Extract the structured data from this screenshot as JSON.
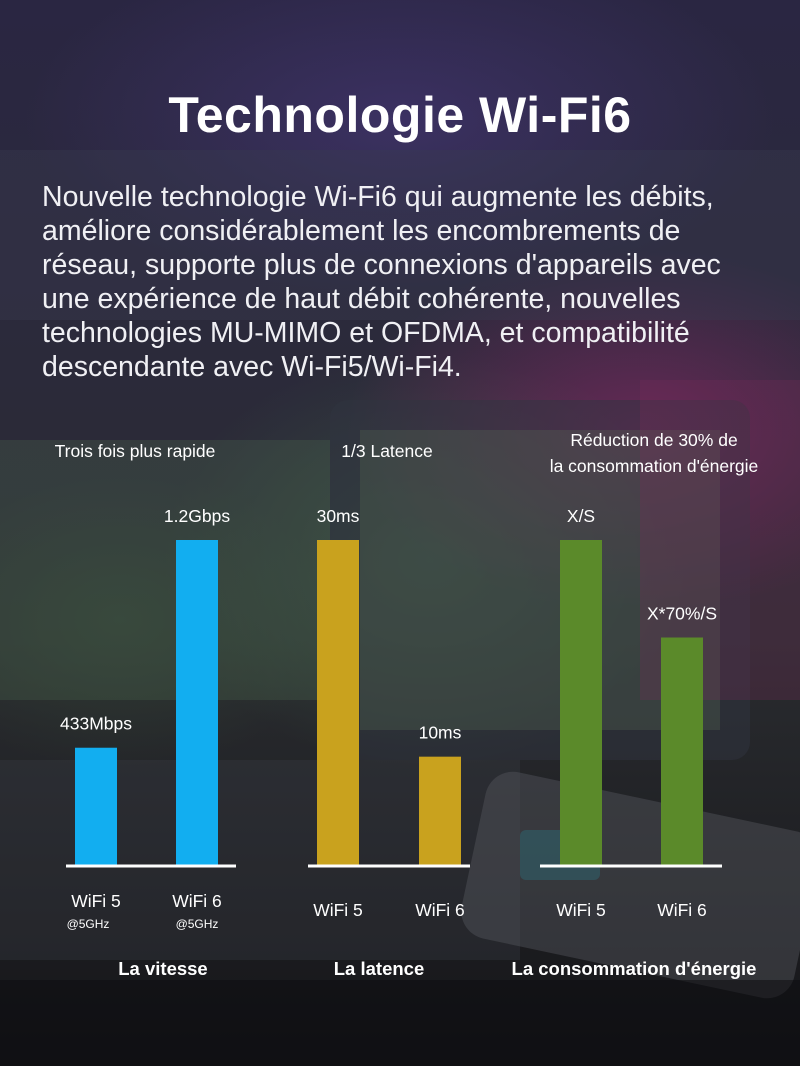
{
  "title": "Technologie Wi-Fi6",
  "description": "Nouvelle technologie Wi-Fi6 qui augmente les débits, améliore considérablement les encombrements de réseau, supporte plus de connexions d'appareils avec une expérience de haut débit cohérente, nouvelles technologies MU-MIMO et OFDMA, et compatibilité descendante avec Wi-Fi5/Wi-Fi4.",
  "colors": {
    "speed": "#12aef0",
    "latency": "#c9a21e",
    "energy": "#5b8a2a",
    "baseline": "#ffffff"
  },
  "chart_data": [
    {
      "type": "bar",
      "title": "Trois fois plus rapide",
      "title_lines": [
        "Trois fois plus rapide"
      ],
      "xlabel": "La vitesse",
      "categories": [
        "WiFi 5",
        "WiFi 6"
      ],
      "category_sublabels": [
        "@5GHz",
        "@5GHz"
      ],
      "values": [
        433,
        1200
      ],
      "value_labels": [
        "433Mbps",
        "1.2Gbps"
      ],
      "unit": "Mbps",
      "ylim": [
        0,
        1200
      ],
      "grid": false,
      "color": "#12aef0"
    },
    {
      "type": "bar",
      "title": "1/3 Latence",
      "title_lines": [
        "1/3 Latence"
      ],
      "xlabel": "La latence",
      "categories": [
        "WiFi 5",
        "WiFi 6"
      ],
      "category_sublabels": [
        "",
        ""
      ],
      "values": [
        30,
        10
      ],
      "value_labels": [
        "30ms",
        "10ms"
      ],
      "unit": "ms",
      "ylim": [
        0,
        30
      ],
      "grid": false,
      "color": "#c9a21e"
    },
    {
      "type": "bar",
      "title": "Réduction de 30% de la consommation d'énergie",
      "title_lines": [
        "Réduction de 30% de",
        "la consommation d'énergie"
      ],
      "xlabel": "La consommation d'énergie",
      "categories": [
        "WiFi 5",
        "WiFi 6"
      ],
      "category_sublabels": [
        "",
        ""
      ],
      "values": [
        1,
        0.7
      ],
      "value_labels": [
        "X/S",
        "X*70%/S"
      ],
      "ylim": [
        0,
        1
      ],
      "grid": false,
      "color": "#5b8a2a"
    }
  ]
}
